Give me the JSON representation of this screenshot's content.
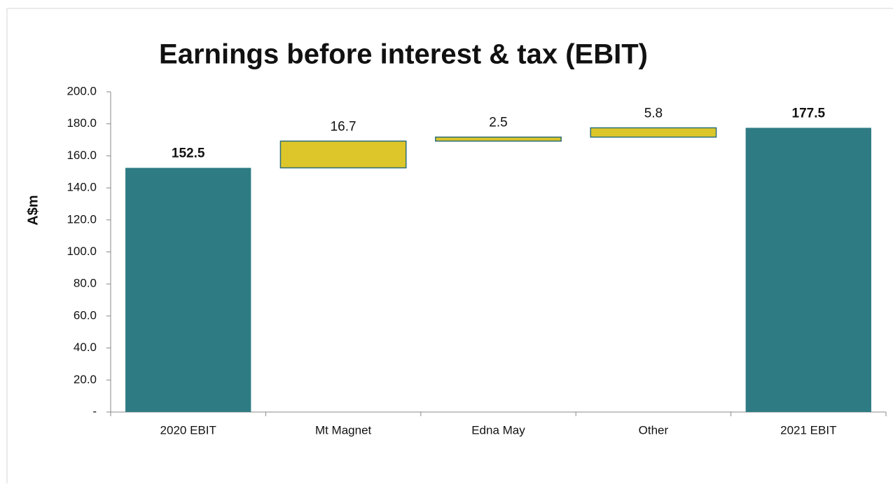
{
  "chart_data": {
    "type": "waterfall",
    "title": "Earnings before interest & tax (EBIT)",
    "y_label": "A$m",
    "categories": [
      "2020 EBIT",
      "Mt Magnet",
      "Edna May",
      "Other",
      "2021 EBIT"
    ],
    "values": [
      152.5,
      16.7,
      2.5,
      5.8,
      177.5
    ],
    "measure": [
      "absolute",
      "relative",
      "relative",
      "relative",
      "absolute"
    ],
    "colors": {
      "absolute": "#2f7b84",
      "relative": "#dcc62a"
    },
    "ylim": [
      0,
      200
    ],
    "yticks": [
      {
        "value": 0,
        "label": "-"
      },
      {
        "value": 20,
        "label": "20.0"
      },
      {
        "value": 40,
        "label": "40.0"
      },
      {
        "value": 60,
        "label": "60.0"
      },
      {
        "value": 80,
        "label": "80.0"
      },
      {
        "value": 100,
        "label": "100.0"
      },
      {
        "value": 120,
        "label": "120.0"
      },
      {
        "value": 140,
        "label": "140.0"
      },
      {
        "value": 160,
        "label": "160.0"
      },
      {
        "value": 180,
        "label": "180.0"
      },
      {
        "value": 200,
        "label": "200.0"
      }
    ],
    "grid": false
  }
}
